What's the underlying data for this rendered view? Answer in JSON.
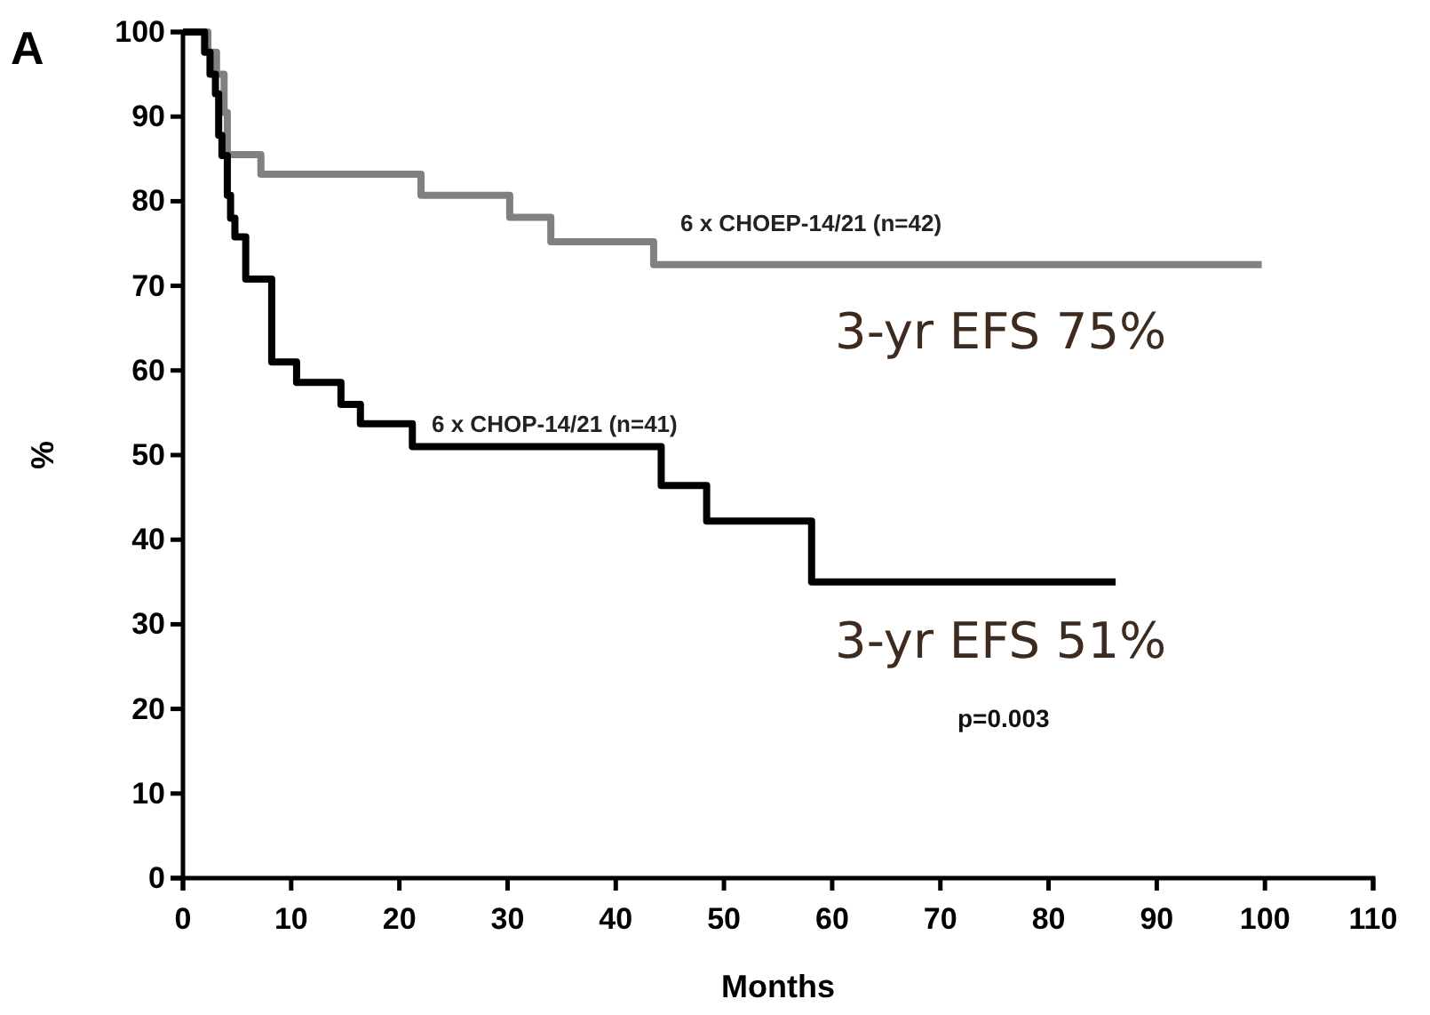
{
  "chart_data": {
    "type": "step",
    "title": "A",
    "xlabel": "Months",
    "ylabel": "%",
    "xlim": [
      0,
      110
    ],
    "xticks": [
      0,
      10,
      20,
      30,
      40,
      50,
      60,
      70,
      80,
      90,
      100,
      110
    ],
    "ylim": [
      0,
      100
    ],
    "yticks": [
      0,
      10,
      20,
      30,
      40,
      50,
      60,
      70,
      80,
      90,
      100
    ],
    "grid": false,
    "legend": false,
    "marker": "none",
    "line_style": "solid",
    "series": [
      {
        "name": "6 x CHOEP-14/21 (n=42)",
        "color": "#808080",
        "x": [
          0,
          2.3,
          3.1,
          3.8,
          4.1,
          7.2,
          22,
          30.2,
          34,
          43.5,
          99.7
        ],
        "values": [
          100,
          97.6,
          95,
          90.5,
          85.5,
          83.2,
          80.7,
          78.1,
          75.2,
          72.5,
          72.5
        ]
      },
      {
        "name": "6 x CHOP-14/21 (n=41)",
        "color": "#000000",
        "x": [
          0,
          2,
          2.5,
          3,
          3.3,
          3.6,
          4.1,
          4.4,
          4.8,
          5.8,
          8.2,
          10.5,
          14.6,
          16.4,
          21.2,
          44.2,
          48.4,
          58.1,
          86.2
        ],
        "values": [
          100,
          97.6,
          95,
          92.7,
          87.8,
          85.4,
          80.7,
          78,
          75.8,
          70.8,
          61,
          58.6,
          56,
          53.7,
          51,
          46.4,
          42.2,
          35,
          35
        ]
      }
    ],
    "annotations": [
      "3-yr EFS 75%",
      "3-yr EFS 51%",
      "p=0.003"
    ]
  }
}
